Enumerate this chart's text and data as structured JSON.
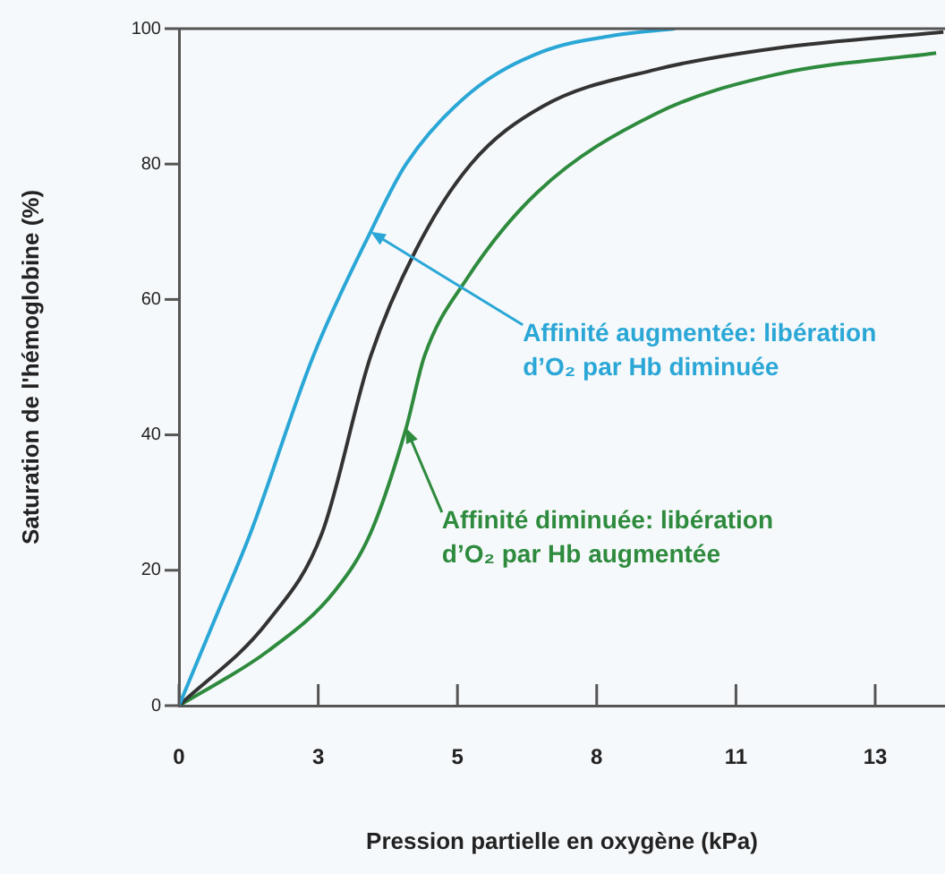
{
  "chart_data": {
    "type": "line",
    "xlabel": "Pression partielle en oxygène (kPa)",
    "ylabel": "Saturation de l'hémoglobine (%)",
    "xlim": [
      0,
      14.67
    ],
    "xticks": [
      0,
      {
        "value": 2.667,
        "label": "3"
      },
      {
        "value": 5.333,
        "label": "5"
      },
      8,
      {
        "value": 10.667,
        "label": "11"
      },
      {
        "value": 13.333,
        "label": "13"
      }
    ],
    "ylim": [
      0,
      100
    ],
    "yticks": [
      0,
      20,
      40,
      60,
      80,
      100
    ],
    "grid": false,
    "legend": false,
    "marker": "none",
    "line_style": "solid",
    "series": [
      {
        "color": "#2aa7d6",
        "x": [
          0,
          0.7,
          1.37,
          2.57,
          3.67,
          4.35,
          5.59,
          6.96,
          8.33,
          9.5
        ],
        "values": [
          0,
          13,
          25.5,
          51.6,
          70,
          80,
          90.6,
          96.6,
          99,
          100
        ]
      },
      {
        "color": "#333333",
        "x": [
          0,
          1.71,
          2.74,
          3.67,
          4.53,
          5.59,
          6.96,
          9.15,
          11.42,
          14.64
        ],
        "values": [
          0,
          12.5,
          25.5,
          51.6,
          67.2,
          80,
          88.5,
          94,
          97.1,
          99.5
        ]
      },
      {
        "color": "#2e8b3e",
        "x": [
          0,
          1.71,
          2.98,
          3.67,
          4.35,
          4.7,
          5.49,
          6.86,
          9.15,
          11.42,
          14.5
        ],
        "values": [
          0,
          8.1,
          16.9,
          25.5,
          41,
          51.6,
          62.8,
          75.8,
          87.5,
          93.2,
          96.4
        ]
      }
    ],
    "annotations": [
      {
        "text": "Affinité augmentée: libération d’O₂ par Hb diminuée",
        "x": 3.67,
        "y": 70
      },
      {
        "text": "Affinité diminuée: libération d’O₂ par Hb augmentée",
        "x": 4.35,
        "y": 41
      }
    ]
  }
}
